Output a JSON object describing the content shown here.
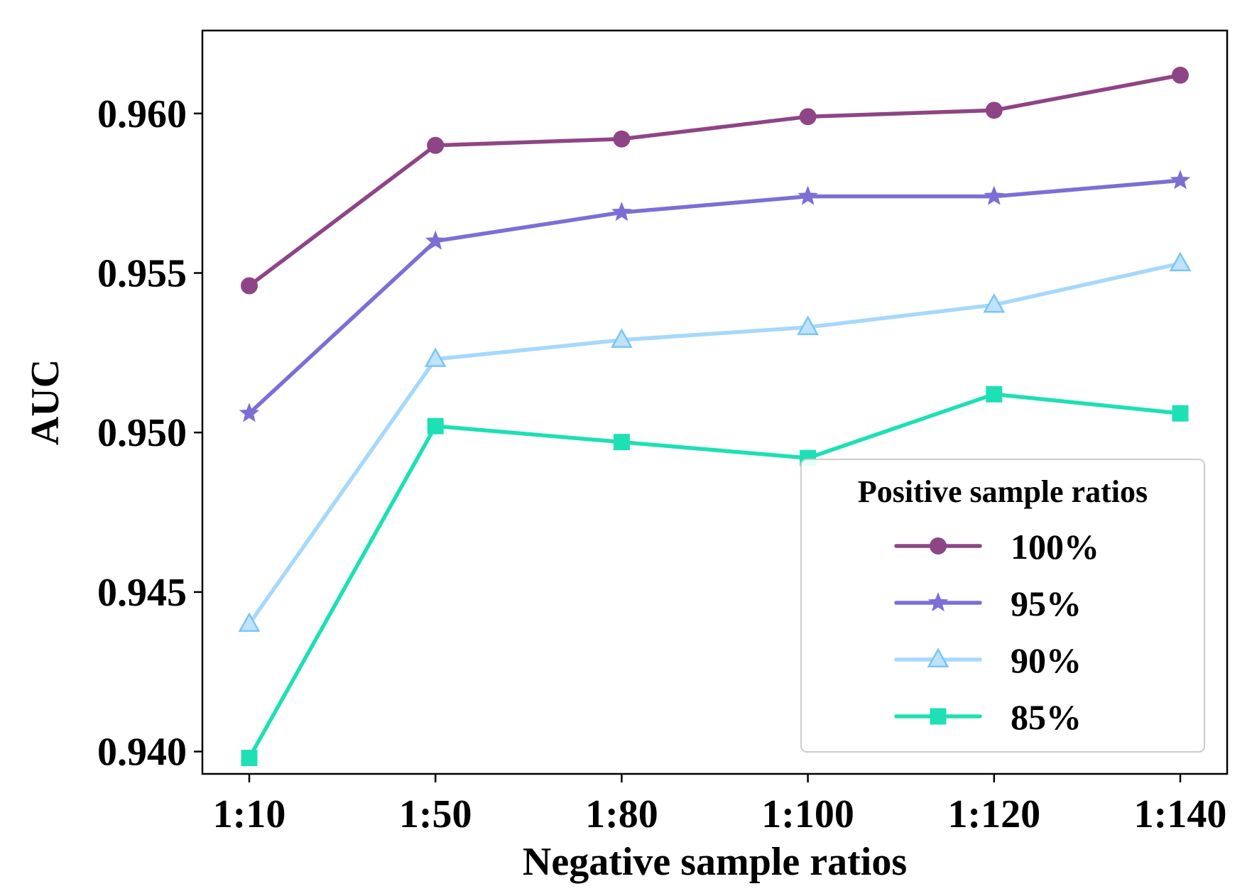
{
  "chart_data": {
    "type": "line",
    "title": "",
    "xlabel": "Negative sample ratios",
    "ylabel": "AUC",
    "categories": [
      "1:10",
      "1:50",
      "1:80",
      "1:100",
      "1:120",
      "1:140"
    ],
    "ylim": [
      0.9393,
      0.9626
    ],
    "yticks": [
      0.94,
      0.945,
      0.95,
      0.955,
      0.96
    ],
    "ytick_labels": [
      "0.940",
      "0.945",
      "0.950",
      "0.955",
      "0.960"
    ],
    "grid": false,
    "legend": {
      "title": "Positive sample ratios",
      "position": "lower-right"
    },
    "series": [
      {
        "name": "100%",
        "marker": "circle",
        "color": "#8e4585",
        "values": [
          0.9546,
          0.959,
          0.9592,
          0.9599,
          0.9601,
          0.9612
        ]
      },
      {
        "name": "95%",
        "marker": "star",
        "color": "#7b6fd6",
        "values": [
          0.9506,
          0.956,
          0.9569,
          0.9574,
          0.9574,
          0.9579
        ]
      },
      {
        "name": "90%",
        "marker": "triangle",
        "color": "#a6d8fb",
        "values": [
          0.944,
          0.9523,
          0.9529,
          0.9533,
          0.954,
          0.9553
        ]
      },
      {
        "name": "85%",
        "marker": "square",
        "color": "#1de0b4",
        "values": [
          0.9398,
          0.9502,
          0.9497,
          0.9492,
          0.9512,
          0.9506
        ]
      }
    ]
  }
}
